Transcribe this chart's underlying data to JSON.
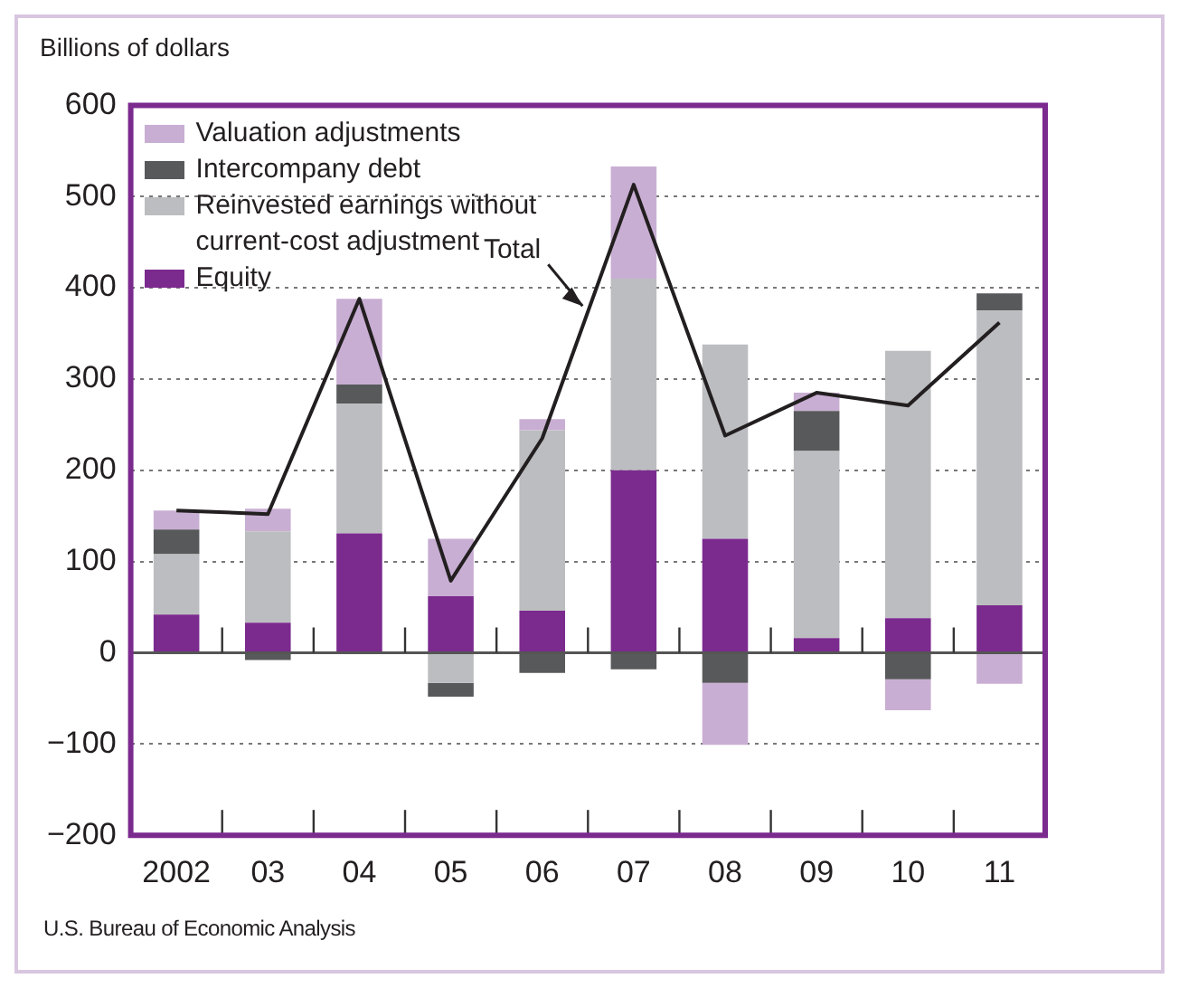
{
  "chart_data": {
    "type": "bar",
    "ylabel": "Billions of dollars",
    "categories": [
      "2002",
      "03",
      "04",
      "05",
      "06",
      "07",
      "08",
      "09",
      "10",
      "11"
    ],
    "stacked": true,
    "series": [
      {
        "name": "Equity",
        "color": "#7b2a8e",
        "values": [
          42,
          33,
          131,
          62,
          46,
          200,
          125,
          16,
          38,
          52
        ]
      },
      {
        "name": "Reinvested earnings without current-cost adjustment",
        "color": "#bcbdc0",
        "values": [
          66,
          100,
          142,
          -33,
          198,
          210,
          213,
          205,
          293,
          323
        ]
      },
      {
        "name": "Intercompany debt",
        "color": "#58595b",
        "values": [
          27,
          -8,
          21,
          -15,
          -22,
          -18,
          -33,
          44,
          -29,
          19
        ]
      },
      {
        "name": "Valuation adjustments",
        "color": "#c9aed3",
        "values": [
          21,
          25,
          94,
          63,
          12,
          123,
          -68,
          20,
          -34,
          -34
        ]
      },
      {
        "name": "Total",
        "type": "line",
        "color": "#231f20",
        "values": [
          156,
          152,
          388,
          79,
          235,
          513,
          238,
          285,
          271,
          362
        ]
      }
    ],
    "ylim": [
      -200,
      600
    ],
    "yticks": [
      -200,
      -100,
      0,
      100,
      200,
      300,
      400,
      500,
      600
    ],
    "grid": "y",
    "legend": "top left",
    "annotations": [
      "U.S. Bureau of Economic Analysis"
    ]
  }
}
